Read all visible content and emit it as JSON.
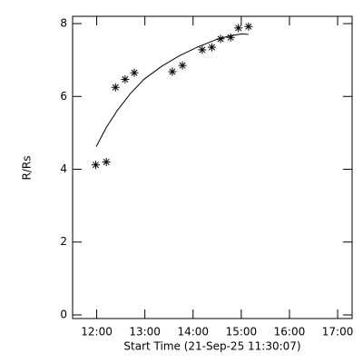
{
  "chart_data": {
    "type": "scatter",
    "xlabel": "Start Time (21-Sep-25 11:30:07)",
    "ylabel": "R/Rs",
    "xlim": [
      11.5,
      17.3
    ],
    "ylim": [
      -0.1,
      8.2
    ],
    "xticks": [
      {
        "value": 12,
        "label": "12:00"
      },
      {
        "value": 13,
        "label": "13:00"
      },
      {
        "value": 14,
        "label": "14:00"
      },
      {
        "value": 15,
        "label": "15:00"
      },
      {
        "value": 16,
        "label": "16:00"
      },
      {
        "value": 17,
        "label": "17:00"
      }
    ],
    "yticks": [
      0,
      2,
      4,
      6,
      8
    ],
    "color": "#000000",
    "series": [
      {
        "type": "scatter",
        "x": [
          11.98,
          12.2,
          12.39,
          12.59,
          12.78,
          13.57,
          13.78,
          14.19,
          14.39,
          14.57,
          14.78,
          14.94,
          15.15
        ],
        "values": [
          4.12,
          4.2,
          6.25,
          6.47,
          6.65,
          6.68,
          6.85,
          7.28,
          7.35,
          7.58,
          7.62,
          7.88,
          7.92
        ]
      },
      {
        "type": "line",
        "x": [
          11.99,
          12.2,
          12.43,
          12.7,
          12.98,
          13.35,
          13.72,
          14.1,
          14.46,
          14.75,
          15.02,
          15.15
        ],
        "values": [
          4.62,
          5.15,
          5.62,
          6.08,
          6.47,
          6.83,
          7.12,
          7.36,
          7.55,
          7.66,
          7.72,
          7.7
        ]
      }
    ]
  }
}
